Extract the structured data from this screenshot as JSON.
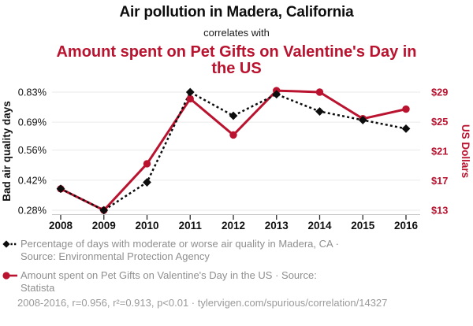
{
  "header": {
    "title": "Air pollution in Madera, California",
    "connector": "correlates with",
    "subtitle": "Amount spent on Pet Gifts on Valentine's Day in the US"
  },
  "colors": {
    "accent_red": "#ba132f",
    "series_black": "#0d0d0d",
    "grid": "#eaeaea",
    "axis_line": "#c9c9c9",
    "tick": "#2b2b2b",
    "legend_text": "#8f8f8f",
    "footer_text": "#9a9a9a"
  },
  "chart_data": {
    "type": "line",
    "x": [
      "2008",
      "2009",
      "2010",
      "2011",
      "2012",
      "2013",
      "2014",
      "2015",
      "2016"
    ],
    "series": [
      {
        "name": "Percentage of days with moderate or worse air quality in Madera, CA",
        "axis": "left",
        "units": "%",
        "values": [
          0.38,
          0.28,
          0.41,
          0.83,
          0.72,
          0.82,
          0.74,
          0.7,
          0.66
        ],
        "marker": "diamond",
        "line": "dashed",
        "color": "#0d0d0d"
      },
      {
        "name": "Amount spent on Pet Gifts on Valentine's Day in the US",
        "axis": "right",
        "units": "USD",
        "values": [
          15.9,
          13.0,
          19.3,
          28.1,
          23.2,
          29.2,
          29.0,
          25.4,
          26.7
        ],
        "marker": "circle",
        "line": "solid",
        "color": "#ba132f"
      }
    ],
    "left_axis": {
      "label": "Bad air quality days",
      "ticks": [
        "0.83%",
        "0.69%",
        "0.56%",
        "0.42%",
        "0.28%"
      ],
      "tick_values": [
        0.83,
        0.69,
        0.56,
        0.42,
        0.28
      ],
      "min": 0.28,
      "max": 0.83
    },
    "right_axis": {
      "label": "US Dollars",
      "ticks": [
        "$29",
        "$25",
        "$21",
        "$17",
        "$13"
      ],
      "tick_values": [
        29,
        25,
        21,
        17,
        13
      ],
      "min": 13,
      "max": 29
    },
    "grid": true,
    "legend_position": "bottom"
  },
  "legend": [
    {
      "line1": "Percentage of days with moderate or worse air quality in Madera, CA ·",
      "line2": "Source: Environmental Protection Agency"
    },
    {
      "line1": "Amount spent on Pet Gifts on Valentine's Day in the US · Source:",
      "line2": "Statista"
    }
  ],
  "footer": {
    "text": "2008-2016, r=0.956, r²=0.913, p<0.01 · tylervigen.com/spurious/correlation/14327"
  }
}
